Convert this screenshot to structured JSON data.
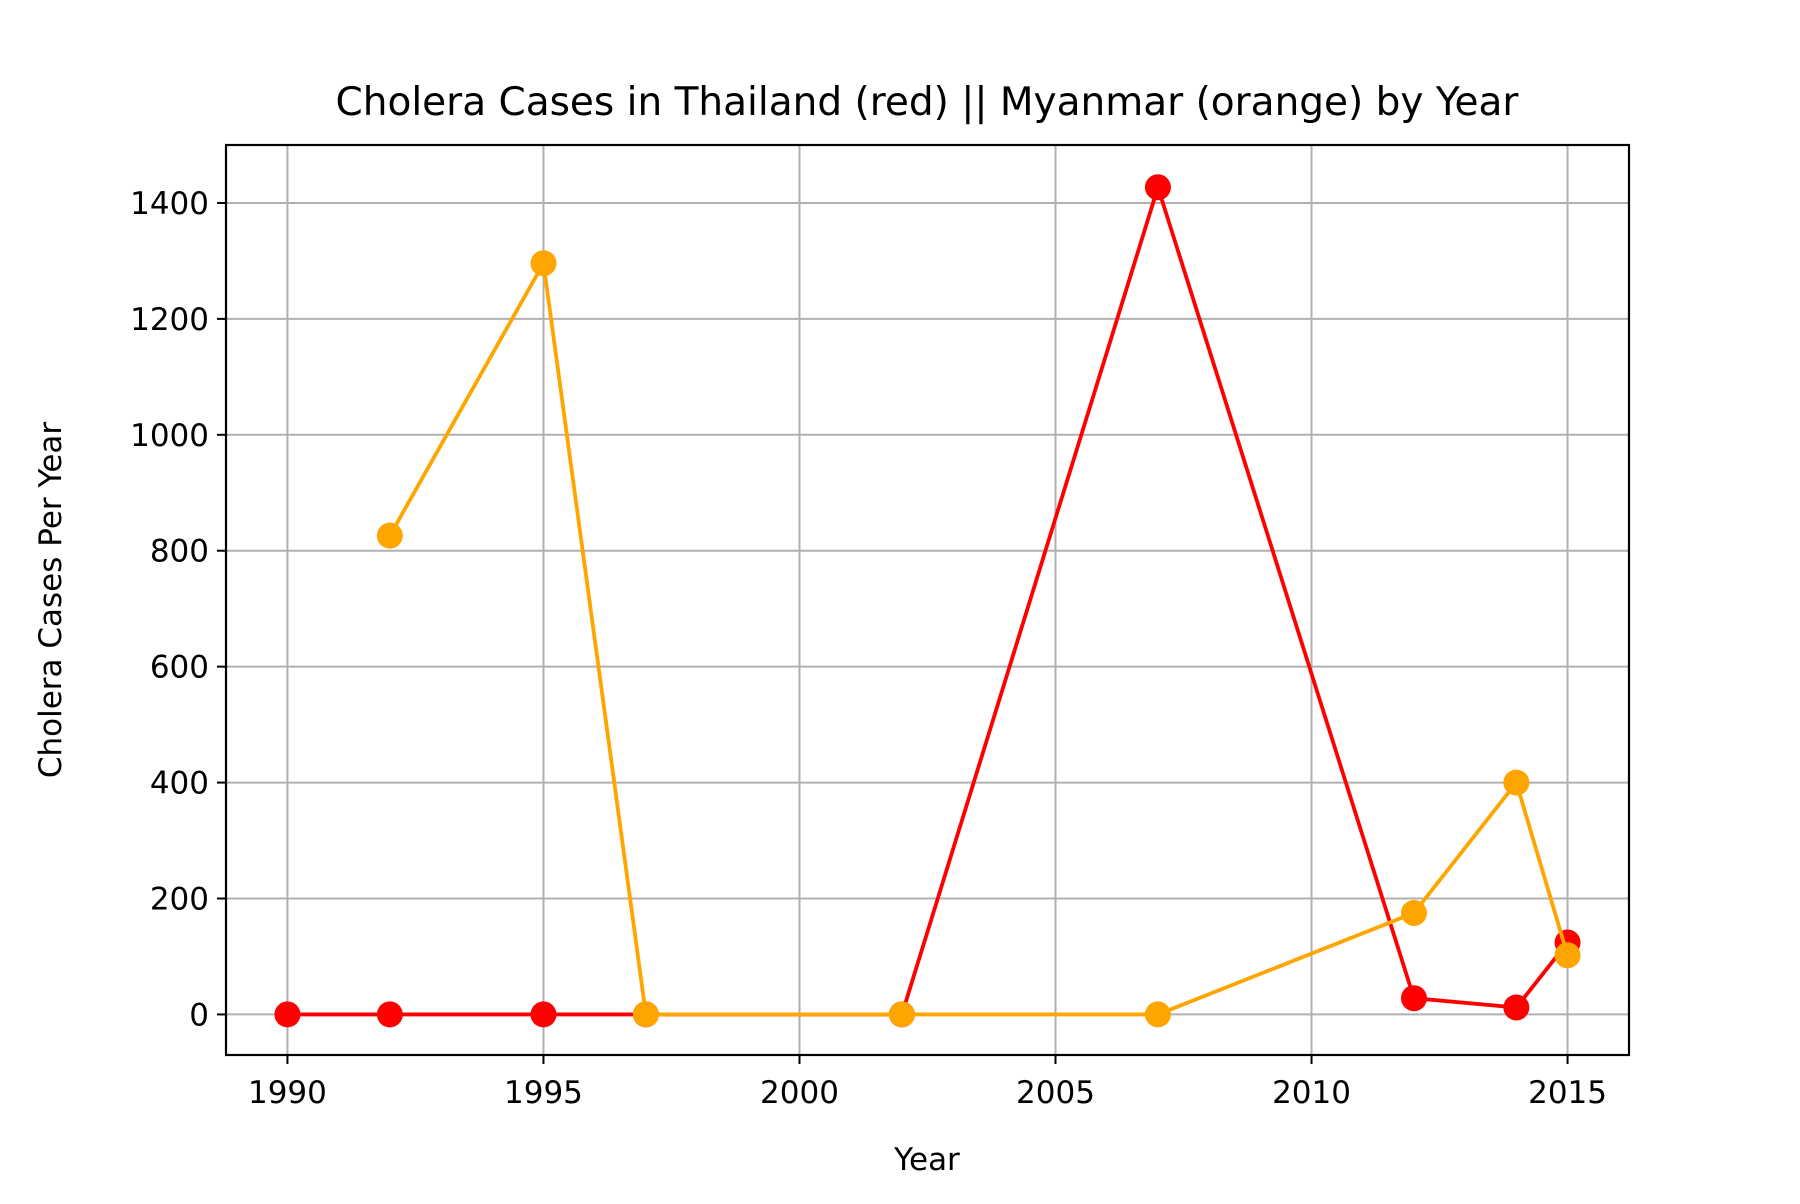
{
  "chart_data": {
    "type": "line",
    "title": "Cholera Cases in Thailand (red) || Myanmar (orange) by Year",
    "xlabel": "Year",
    "ylabel": "Cholera Cases Per Year",
    "xlim": [
      1988.8,
      2016.2
    ],
    "ylim": [
      -70,
      1500
    ],
    "xticks": [
      1990,
      1995,
      2000,
      2005,
      2010,
      2015
    ],
    "yticks": [
      0,
      200,
      400,
      600,
      800,
      1000,
      1200,
      1400
    ],
    "grid": true,
    "series": [
      {
        "color": "#ff0000",
        "x": [
          1990,
          1992,
          1995,
          1997,
          2002,
          2007,
          2012,
          2014,
          2015
        ],
        "y": [
          0,
          0,
          0,
          0,
          0,
          1427,
          28,
          12,
          124
        ]
      },
      {
        "color": "#ffa500",
        "x": [
          1992,
          1995,
          1997,
          2002,
          2007,
          2012,
          2014,
          2015
        ],
        "y": [
          826,
          1296,
          0,
          0,
          0,
          175,
          400,
          102
        ]
      }
    ]
  }
}
